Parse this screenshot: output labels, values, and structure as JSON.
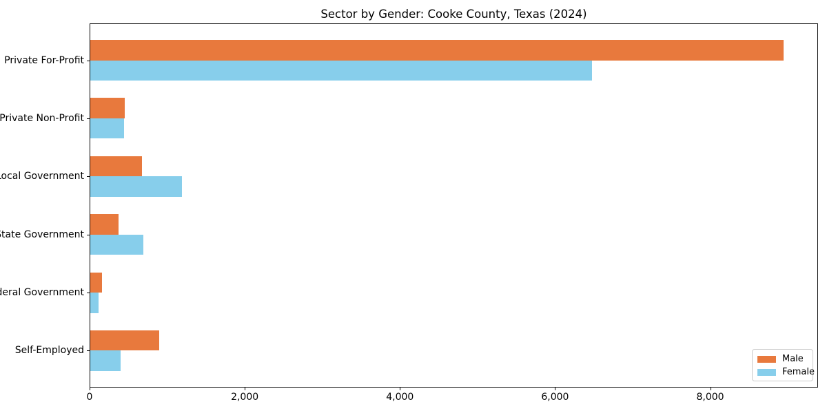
{
  "chart_data": {
    "type": "bar",
    "orientation": "horizontal",
    "title": "Sector by Gender: Cooke County, Texas (2024)",
    "categories": [
      "Private For-Profit",
      "Private Non-Profit",
      "Local Government",
      "State Government",
      "Federal Government",
      "Self-Employed"
    ],
    "series": [
      {
        "name": "Male",
        "color": "#E8793D",
        "values": [
          8940,
          445,
          670,
          365,
          155,
          890
        ]
      },
      {
        "name": "Female",
        "color": "#87CEEB",
        "values": [
          6470,
          435,
          1185,
          680,
          105,
          395
        ]
      }
    ],
    "xlabel": "",
    "ylabel": "",
    "xlim": [
      0,
      9390
    ],
    "x_ticks": [
      0,
      2000,
      4000,
      6000,
      8000
    ],
    "x_tick_labels": [
      "0",
      "2,000",
      "4,000",
      "6,000",
      "8,000"
    ],
    "grid": false,
    "legend": {
      "position": "lower right"
    },
    "colors": {
      "male": "#E8793D",
      "female": "#87CEEB",
      "axis": "#000000",
      "legend_border": "#cccccc"
    }
  }
}
